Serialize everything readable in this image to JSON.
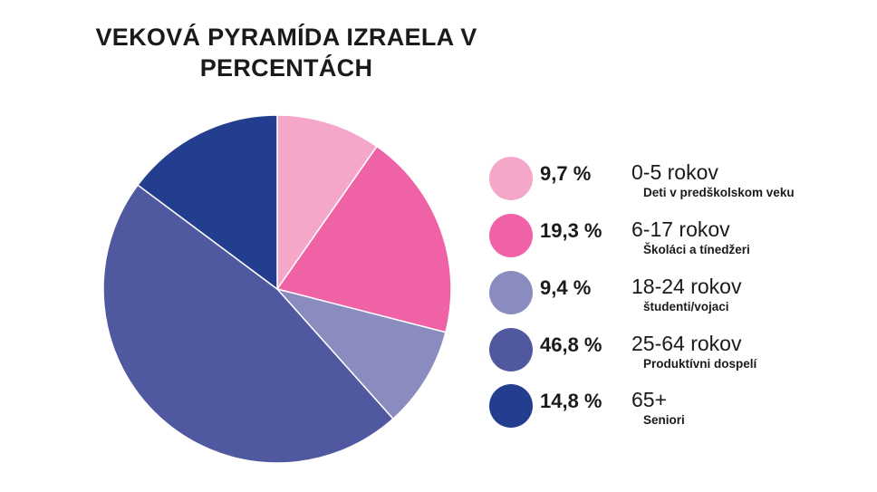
{
  "chart_data": {
    "type": "pie",
    "title": "VEKOVÁ PYRAMÍDA IZRAELA V PERCENTÁCH",
    "slices": [
      {
        "value": 9.7,
        "label": "9,7 %",
        "range": "0-5 rokov",
        "desc": "Deti v predškolskom veku",
        "color": "#f4a7c9"
      },
      {
        "value": 19.3,
        "label": "19,3 %",
        "range": "6-17 rokov",
        "desc": "Školáci a tínedžeri",
        "color": "#ef62a5"
      },
      {
        "value": 9.4,
        "label": "9,4 %",
        "range": "18-24 rokov",
        "desc": "študenti/vojaci",
        "color": "#8a8bbf"
      },
      {
        "value": 46.8,
        "label": "46,8 %",
        "range": "25-64 rokov",
        "desc": "Produktívni dospelí",
        "color": "#5059a0"
      },
      {
        "value": 14.8,
        "label": "14,8 %",
        "range": "65+",
        "desc": "Seniori",
        "color": "#233d8f"
      }
    ]
  }
}
